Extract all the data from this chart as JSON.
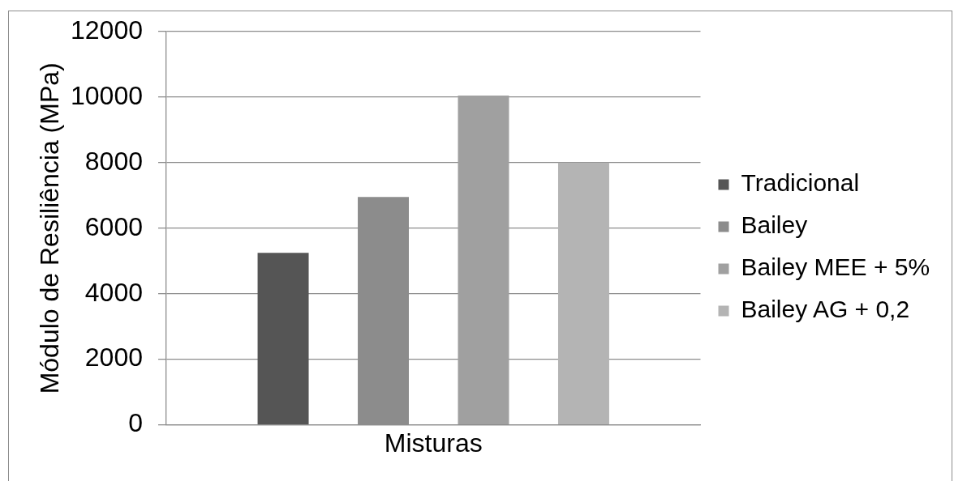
{
  "chart_data": {
    "type": "bar",
    "categories": [
      "Misturas"
    ],
    "series": [
      {
        "name": "Tradicional",
        "color": "#555555",
        "values": [
          5250
        ]
      },
      {
        "name": "Bailey",
        "color": "#8c8c8c",
        "values": [
          6950
        ]
      },
      {
        "name": "Bailey MEE + 5%",
        "color": "#a0a0a0",
        "values": [
          10050
        ]
      },
      {
        "name": "Bailey AG + 0,2",
        "color": "#b4b4b4",
        "values": [
          8000
        ]
      }
    ],
    "ylabel": "Módulo de Resiliência (MPa)",
    "ylim": [
      0,
      12000
    ],
    "yticks": [
      0,
      2000,
      4000,
      6000,
      8000,
      10000,
      12000
    ],
    "grid": "y",
    "legend": "right"
  }
}
